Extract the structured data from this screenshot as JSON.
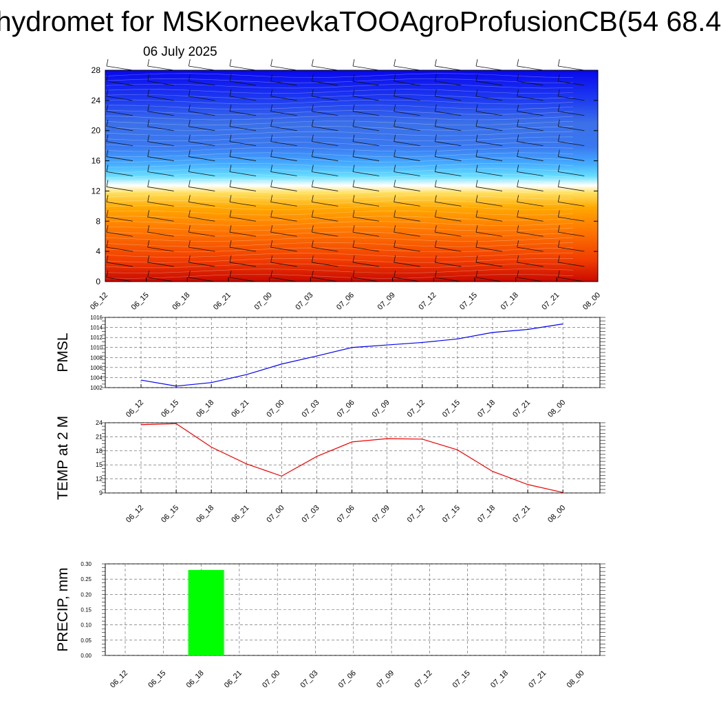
{
  "header": {
    "title": "hydromet for MSKorneevkaTOOAgroProfusionCB(54 68.4",
    "date": "06 July 2025"
  },
  "chart_data": [
    {
      "type": "heatmap",
      "title": "",
      "xlabel": "",
      "ylabel": "",
      "x_ticks": [
        "06_12",
        "06_15",
        "06_18",
        "06_21",
        "07_00",
        "07_03",
        "07_06",
        "07_09",
        "07_12",
        "07_15",
        "07_18",
        "07_21",
        "08_00"
      ],
      "y_ticks": [
        0,
        4,
        8,
        12,
        16,
        20,
        24,
        28
      ],
      "ylim": [
        0,
        28
      ],
      "description_of_layers": "filled color contours (red/orange low levels, white near 12-13, blue upper levels) with wind barbs",
      "colors": [
        "#cc1100",
        "#ff6a00",
        "#ffb400",
        "#ffee66",
        "#ffffff",
        "#33ccff",
        "#3377ff",
        "#1111ee"
      ]
    },
    {
      "type": "line",
      "ylabel": "PMSL",
      "x": [
        "06_12",
        "06_15",
        "06_18",
        "06_21",
        "07_00",
        "07_03",
        "07_06",
        "07_09",
        "07_12",
        "07_15",
        "07_18",
        "07_21",
        "08_00"
      ],
      "series": [
        {
          "values": [
            1003.5,
            1002.3,
            1003.0,
            1004.6,
            1006.7,
            1008.3,
            1010.0,
            1010.5,
            1011.0,
            1011.7,
            1013.0,
            1013.6,
            1014.7
          ]
        }
      ],
      "ylim": [
        1002,
        1016
      ],
      "y_ticks": [
        1002,
        1004,
        1006,
        1008,
        1010,
        1012,
        1014,
        1016
      ],
      "color": "#0000ee"
    },
    {
      "type": "line",
      "ylabel": "TEMP at 2 M",
      "x": [
        "06_12",
        "06_15",
        "06_18",
        "06_21",
        "07_00",
        "07_03",
        "07_06",
        "07_09",
        "07_12",
        "07_15",
        "07_18",
        "07_21",
        "08_00"
      ],
      "series": [
        {
          "values": [
            23.6,
            23.8,
            18.8,
            15.2,
            12.6,
            16.8,
            19.9,
            20.6,
            20.5,
            18.2,
            13.6,
            10.8,
            9.1
          ]
        }
      ],
      "ylim": [
        9,
        24
      ],
      "y_ticks": [
        9,
        12,
        15,
        18,
        21,
        24
      ],
      "color": "#ee0000"
    },
    {
      "type": "bar",
      "ylabel": "PRECIP, mm",
      "categories": [
        "06_12",
        "06_15",
        "06_18",
        "06_21",
        "07_00",
        "07_03",
        "07_06",
        "07_09",
        "07_12",
        "07_15",
        "07_18",
        "07_21",
        "08_00"
      ],
      "values": [
        0,
        0,
        0.28,
        0,
        0,
        0,
        0,
        0,
        0,
        0,
        0,
        0,
        0
      ],
      "ylim": [
        0,
        0.3
      ],
      "y_ticks": [
        "0.00",
        "0.05",
        "0.10",
        "0.15",
        "0.20",
        "0.25",
        "0.30"
      ],
      "color": "#00ff00"
    }
  ]
}
